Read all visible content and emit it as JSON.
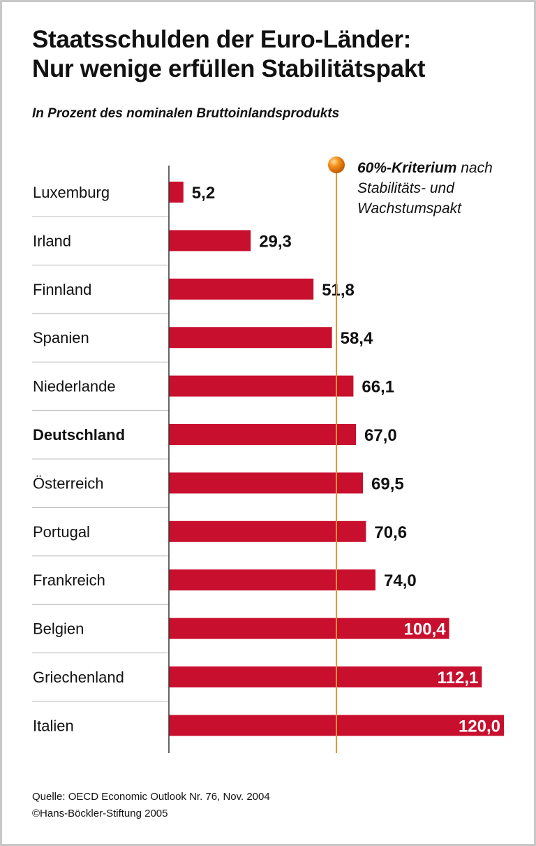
{
  "title_line1": "Staatsschulden der Euro-Länder:",
  "title_line2": "Nur wenige erfüllen Stabilitätspakt",
  "subtitle": "In Prozent des nominalen Bruttoinlandsprodukts",
  "chart_data": {
    "type": "bar",
    "orientation": "horizontal",
    "categories": [
      "Luxemburg",
      "Irland",
      "Finnland",
      "Spanien",
      "Niederlande",
      "Deutschland",
      "Österreich",
      "Portugal",
      "Frankreich",
      "Belgien",
      "Griechenland",
      "Italien"
    ],
    "values": [
      5.2,
      29.3,
      51.8,
      58.4,
      66.1,
      67.0,
      69.5,
      70.6,
      74.0,
      100.4,
      112.1,
      120.0
    ],
    "value_labels": [
      "5,2",
      "29,3",
      "51,8",
      "58,4",
      "66,1",
      "67,0",
      "69,5",
      "70,6",
      "74,0",
      "100,4",
      "112,1",
      "120,0"
    ],
    "highlighted_category": "Deutschland",
    "xlim": [
      0,
      120
    ],
    "reference_line": {
      "value": 60,
      "label_bold": "60%-Kriterium",
      "label_rest": " nach",
      "label_line2": "Stabilitäts- und",
      "label_line3": "Wachstumspakt",
      "color": "#e8952a"
    },
    "bar_color": "#c8102e",
    "grid": false
  },
  "footer": {
    "source": "Quelle: OECD Economic Outlook Nr. 76, Nov. 2004",
    "copyright": "©Hans-Böckler-Stiftung 2005"
  }
}
